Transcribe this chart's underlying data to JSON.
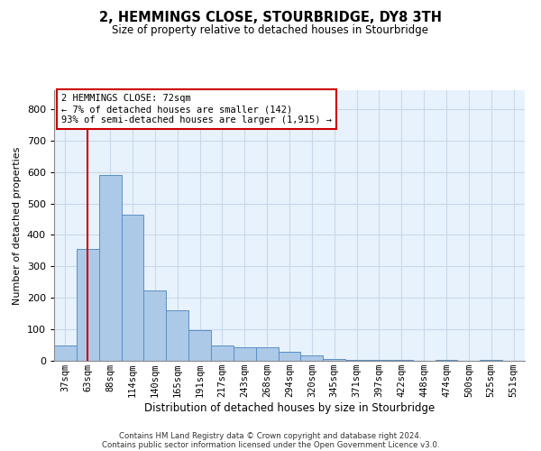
{
  "title": "2, HEMMINGS CLOSE, STOURBRIDGE, DY8 3TH",
  "subtitle": "Size of property relative to detached houses in Stourbridge",
  "xlabel": "Distribution of detached houses by size in Stourbridge",
  "ylabel": "Number of detached properties",
  "footnote1": "Contains HM Land Registry data © Crown copyright and database right 2024.",
  "footnote2": "Contains public sector information licensed under the Open Government Licence v3.0.",
  "bar_labels": [
    "37sqm",
    "63sqm",
    "88sqm",
    "114sqm",
    "140sqm",
    "165sqm",
    "191sqm",
    "217sqm",
    "243sqm",
    "268sqm",
    "294sqm",
    "320sqm",
    "345sqm",
    "371sqm",
    "397sqm",
    "422sqm",
    "448sqm",
    "474sqm",
    "500sqm",
    "525sqm",
    "551sqm"
  ],
  "bar_values": [
    50,
    355,
    590,
    465,
    225,
    160,
    97,
    50,
    42,
    42,
    30,
    18,
    5,
    3,
    3,
    2,
    1,
    2,
    1,
    2,
    1
  ],
  "bar_color": "#adc9e8",
  "bar_edge_color": "#5a8fc4",
  "grid_color": "#c8d8ea",
  "background_color": "#e8f2fc",
  "annotation_text": "2 HEMMINGS CLOSE: 72sqm\n← 7% of detached houses are smaller (142)\n93% of semi-detached houses are larger (1,915) →",
  "annotation_box_color": "#ffffff",
  "annotation_border_color": "#cc0000",
  "property_line_color": "#cc0000",
  "property_line_x": 1.0,
  "ylim": [
    0,
    860
  ],
  "yticks": [
    0,
    100,
    200,
    300,
    400,
    500,
    600,
    700,
    800
  ]
}
